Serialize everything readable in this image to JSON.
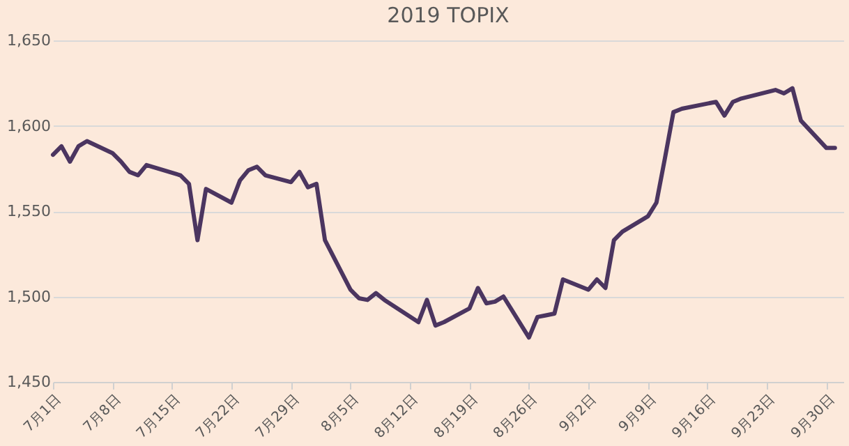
{
  "chart_data": {
    "type": "line",
    "title": "2019 TOPIX",
    "x": [
      "2019-07-01",
      "2019-07-02",
      "2019-07-03",
      "2019-07-04",
      "2019-07-05",
      "2019-07-08",
      "2019-07-09",
      "2019-07-10",
      "2019-07-11",
      "2019-07-12",
      "2019-07-16",
      "2019-07-17",
      "2019-07-18",
      "2019-07-19",
      "2019-07-22",
      "2019-07-23",
      "2019-07-24",
      "2019-07-25",
      "2019-07-26",
      "2019-07-29",
      "2019-07-30",
      "2019-07-31",
      "2019-08-01",
      "2019-08-02",
      "2019-08-05",
      "2019-08-06",
      "2019-08-07",
      "2019-08-08",
      "2019-08-09",
      "2019-08-13",
      "2019-08-14",
      "2019-08-15",
      "2019-08-16",
      "2019-08-19",
      "2019-08-20",
      "2019-08-21",
      "2019-08-22",
      "2019-08-23",
      "2019-08-26",
      "2019-08-27",
      "2019-08-28",
      "2019-08-29",
      "2019-08-30",
      "2019-09-02",
      "2019-09-03",
      "2019-09-04",
      "2019-09-05",
      "2019-09-06",
      "2019-09-09",
      "2019-09-10",
      "2019-09-11",
      "2019-09-12",
      "2019-09-13",
      "2019-09-17",
      "2019-09-18",
      "2019-09-19",
      "2019-09-20",
      "2019-09-24",
      "2019-09-25",
      "2019-09-26",
      "2019-09-27",
      "2019-09-30",
      "2019-10-01"
    ],
    "series": [
      {
        "color": "#4b3560",
        "values": [
          1583,
          1588,
          1579,
          1588,
          1591,
          1584,
          1579,
          1573,
          1571,
          1577,
          1571,
          1566,
          1533,
          1563,
          1555,
          1568,
          1574,
          1576,
          1571,
          1567,
          1573,
          1564,
          1566,
          1533,
          1504,
          1499,
          1498,
          1502,
          1498,
          1485,
          1498,
          1483,
          1485,
          1493,
          1505,
          1496,
          1497,
          1500,
          1476,
          1488,
          1489,
          1490,
          1510,
          1504,
          1510,
          1505,
          1533,
          1538,
          1547,
          1555,
          1581,
          1608,
          1610,
          1614,
          1606,
          1614,
          1616,
          1621,
          1619,
          1622,
          1603,
          1587,
          1587
        ]
      }
    ],
    "xlim": [
      "2019-07-01",
      "2019-10-02"
    ],
    "xticks": [
      {
        "value": "2019-07-01",
        "label": "7月1日"
      },
      {
        "value": "2019-07-08",
        "label": "7月8日"
      },
      {
        "value": "2019-07-15",
        "label": "7月15日"
      },
      {
        "value": "2019-07-22",
        "label": "7月22日"
      },
      {
        "value": "2019-07-29",
        "label": "7月29日"
      },
      {
        "value": "2019-08-05",
        "label": "8月5日"
      },
      {
        "value": "2019-08-12",
        "label": "8月12日"
      },
      {
        "value": "2019-08-19",
        "label": "8月19日"
      },
      {
        "value": "2019-08-26",
        "label": "8月26日"
      },
      {
        "value": "2019-09-02",
        "label": "9月2日"
      },
      {
        "value": "2019-09-09",
        "label": "9月9日"
      },
      {
        "value": "2019-09-16",
        "label": "9月16日"
      },
      {
        "value": "2019-09-23",
        "label": "9月23日"
      },
      {
        "value": "2019-09-30",
        "label": "9月30日"
      }
    ],
    "ylim": [
      1450,
      1650
    ],
    "yticks": [
      {
        "value": 1450,
        "label": "1,450"
      },
      {
        "value": 1500,
        "label": "1,500"
      },
      {
        "value": 1550,
        "label": "1,550"
      },
      {
        "value": 1600,
        "label": "1,600"
      },
      {
        "value": 1650,
        "label": "1,650"
      }
    ],
    "grid": "y",
    "legend": false,
    "marker": "none",
    "line_style": "solid"
  }
}
